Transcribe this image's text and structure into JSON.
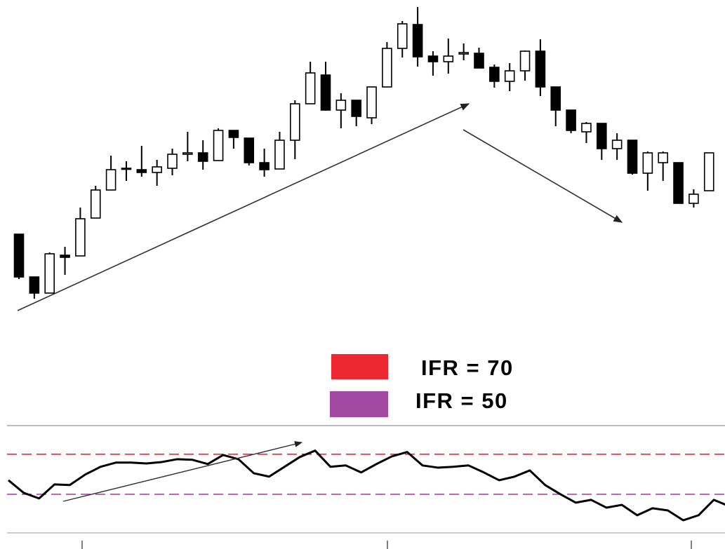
{
  "chart_data": [
    {
      "type": "candlestick",
      "categories": [
        null,
        null,
        null,
        null,
        null,
        null,
        null,
        null,
        null,
        null,
        null,
        null,
        null,
        null,
        null,
        null,
        null,
        null,
        null,
        null,
        null,
        null,
        null,
        null,
        null,
        null,
        null,
        null,
        null,
        null,
        null,
        null,
        null,
        null,
        null,
        null,
        null,
        null,
        null,
        null,
        null,
        null,
        null,
        null,
        null,
        null
      ],
      "open": [
        29,
        13.75,
        8,
        21.5,
        21.25,
        34.75,
        44.75,
        52.5,
        52,
        51,
        52.5,
        57.5,
        58,
        55.25,
        66,
        63.25,
        54.5,
        52.25,
        62.5,
        75.5,
        85.75,
        73.25,
        76.75,
        70.5,
        81.5,
        95.25,
        103.75,
        92.5,
        90.5,
        93.25,
        93.5,
        88.5,
        83.5,
        87.25,
        94.25,
        81.5,
        73.25,
        65.5,
        68.5,
        59.5,
        62.5,
        50.75,
        54.5,
        54.5,
        40,
        44.5
      ],
      "high": [
        29,
        13.75,
        22.5,
        24.5,
        38.5,
        46.25,
        57,
        55,
        60.5,
        55.5,
        59.5,
        65.5,
        62.5,
        66.75,
        66,
        63.25,
        59.5,
        65.5,
        76.75,
        90.5,
        90.5,
        79.25,
        76.75,
        81.5,
        97.5,
        105,
        110,
        94.25,
        98.75,
        97,
        95.5,
        89.5,
        90,
        94.5,
        98.5,
        81.5,
        73.25,
        69,
        68.5,
        65,
        62.5,
        58.5,
        58.5,
        54.5,
        45,
        58
      ],
      "low": [
        13,
        6,
        8,
        14.5,
        21.25,
        34.75,
        44.75,
        48,
        49.5,
        46.25,
        50,
        55,
        52,
        55.25,
        59.5,
        53.5,
        49.5,
        52.25,
        55.75,
        75.5,
        73,
        66.75,
        67.5,
        68.25,
        81.5,
        92,
        88.75,
        85.5,
        86.25,
        91,
        88.25,
        81.25,
        80,
        83.75,
        78.25,
        67.5,
        65,
        61.5,
        55.5,
        55.5,
        50.25,
        44.5,
        48,
        40,
        38.5,
        44.5
      ],
      "close": [
        13.75,
        8,
        22,
        20.75,
        34.5,
        44.75,
        52,
        52.5,
        51,
        53,
        57.5,
        58,
        55,
        66,
        63.5,
        54.5,
        52,
        62.5,
        75.5,
        86.5,
        73.25,
        76.75,
        71,
        81.5,
        95.25,
        104,
        92.25,
        90.5,
        92.5,
        93.75,
        88.25,
        83.5,
        87.25,
        94.25,
        81.5,
        73.25,
        66,
        68.5,
        59.5,
        62.5,
        50.75,
        58,
        58,
        40,
        43.25,
        58
      ],
      "ylim": [
        0,
        112.5
      ],
      "up_color": "#ffffff",
      "down_color": "#000000"
    },
    {
      "type": "line",
      "categories": [
        null,
        null,
        null,
        null,
        null,
        null,
        null,
        null,
        null,
        null,
        null,
        null,
        null,
        null,
        null,
        null,
        null,
        null,
        null,
        null,
        null,
        null,
        null,
        null,
        null,
        null,
        null,
        null,
        null,
        null,
        null,
        null,
        null,
        null,
        null,
        null,
        null,
        null,
        null,
        null,
        null,
        null,
        null,
        null,
        null,
        null,
        null,
        null
      ],
      "series": [
        {
          "color": "#000000",
          "values": [
            57.0,
            50.7,
            47.9,
            54.9,
            54.6,
            59.8,
            63.7,
            65.8,
            65.8,
            65.4,
            66.1,
            67.5,
            67.2,
            65.1,
            69.6,
            67.5,
            60.5,
            58.8,
            63.7,
            68.6,
            71.8,
            63.7,
            64.4,
            60.9,
            65.1,
            68.9,
            71.1,
            64.4,
            63.3,
            63.7,
            64.4,
            60.9,
            57.0,
            58.8,
            61.9,
            54.6,
            50.0,
            45.8,
            47.2,
            43.3,
            44.7,
            39.5,
            43.0,
            41.9,
            37.0,
            39.5,
            47.2,
            44.0
          ]
        }
      ],
      "ylim": [
        30,
        85
      ],
      "levels": [
        {
          "label": "IFR = 70",
          "value": 70,
          "color": "#ee2830"
        },
        {
          "label": "IFR = 50",
          "value": 50,
          "color": "#a349a4"
        }
      ]
    }
  ]
}
